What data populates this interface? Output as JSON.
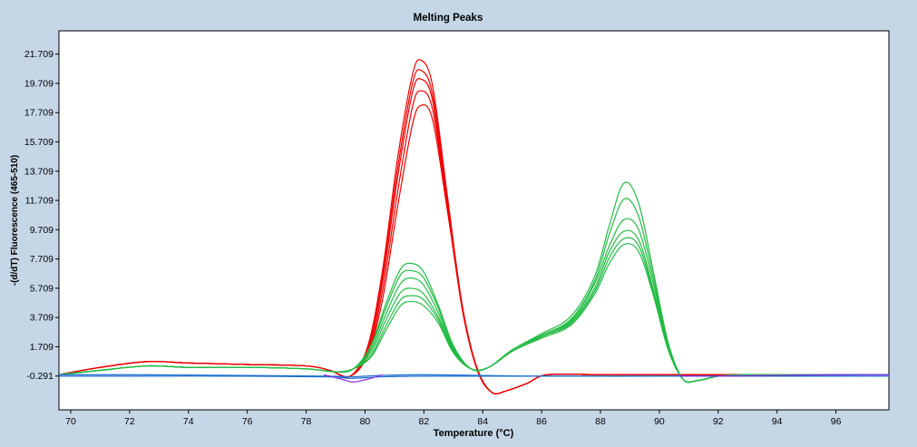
{
  "chart_data": {
    "type": "line",
    "title": "Melting Peaks",
    "xlabel": "Temperature (°C)",
    "ylabel": "-(d/dT) Fluorescence (465-510)",
    "xlim": [
      69.6,
      97.8
    ],
    "ylim": [
      -2.6,
      23.3
    ],
    "x_ticks": [
      70,
      72,
      74,
      76,
      78,
      80,
      82,
      84,
      86,
      88,
      90,
      92,
      94,
      96
    ],
    "y_ticks": [
      -0.291,
      1.709,
      3.709,
      5.709,
      7.709,
      9.709,
      11.709,
      13.709,
      15.709,
      17.709,
      19.709,
      21.709
    ],
    "grid": false,
    "legend": "none",
    "colors": {
      "red": "#ee0000",
      "green": "#22bb44",
      "blue": "#1e6fd0",
      "purple": "#8a2be2"
    },
    "series": [
      {
        "color": "red",
        "x": [
          69.6,
          71,
          72.6,
          74,
          76,
          78,
          78.8,
          79.5,
          80.1,
          80.6,
          81.1,
          81.6,
          81.9,
          82.3,
          82.8,
          83.3,
          83.8,
          84.3,
          84.8,
          85.5,
          86.2,
          88,
          90,
          92,
          94,
          96,
          97.8
        ],
        "y": [
          -0.2,
          0.3,
          0.7,
          0.6,
          0.5,
          0.4,
          0.1,
          -0.3,
          1.8,
          7.0,
          14.5,
          20.2,
          21.3,
          19.5,
          12.0,
          4.6,
          0.2,
          -1.4,
          -1.3,
          -0.8,
          -0.2,
          -0.2,
          -0.2,
          -0.2,
          -0.2,
          -0.2,
          -0.2
        ]
      },
      {
        "color": "red",
        "x": [
          69.6,
          71,
          72.6,
          74,
          76,
          78,
          78.8,
          79.5,
          80.1,
          80.6,
          81.1,
          81.6,
          81.9,
          82.3,
          82.8,
          83.3,
          83.8,
          84.3,
          84.8,
          85.5,
          86.2,
          88,
          90,
          92,
          94,
          96,
          97.8
        ],
        "y": [
          -0.2,
          0.3,
          0.7,
          0.6,
          0.5,
          0.4,
          0.1,
          -0.3,
          1.6,
          6.6,
          13.8,
          19.6,
          20.6,
          18.9,
          11.6,
          4.4,
          0.2,
          -1.4,
          -1.3,
          -0.8,
          -0.2,
          -0.2,
          -0.2,
          -0.2,
          -0.2,
          -0.2,
          -0.2
        ]
      },
      {
        "color": "red",
        "x": [
          69.6,
          71,
          72.6,
          74,
          76,
          78,
          78.8,
          79.5,
          80.1,
          80.6,
          81.1,
          81.6,
          81.9,
          82.3,
          82.8,
          83.3,
          83.8,
          84.3,
          84.8,
          85.5,
          86.2,
          88,
          90,
          92,
          94,
          96,
          97.8
        ],
        "y": [
          -0.2,
          0.3,
          0.7,
          0.6,
          0.5,
          0.4,
          0.1,
          -0.3,
          1.5,
          6.2,
          13.2,
          19.0,
          20.0,
          18.5,
          11.4,
          4.3,
          0.2,
          -1.4,
          -1.3,
          -0.8,
          -0.2,
          -0.2,
          -0.2,
          -0.2,
          -0.2,
          -0.2,
          -0.2
        ]
      },
      {
        "color": "red",
        "x": [
          69.6,
          71,
          72.6,
          74,
          76,
          78,
          78.8,
          79.5,
          80.1,
          80.6,
          81.1,
          81.6,
          81.9,
          82.3,
          82.8,
          83.3,
          83.8,
          84.3,
          84.8,
          85.5,
          86.2,
          88,
          90,
          92,
          94,
          96,
          97.8
        ],
        "y": [
          -0.2,
          0.3,
          0.7,
          0.6,
          0.5,
          0.4,
          0.1,
          -0.3,
          1.3,
          5.6,
          12.2,
          18.0,
          19.2,
          17.9,
          11.2,
          4.4,
          0.3,
          -1.4,
          -1.3,
          -0.8,
          -0.2,
          -0.2,
          -0.2,
          -0.2,
          -0.2,
          -0.2,
          -0.2
        ]
      },
      {
        "color": "red",
        "x": [
          69.6,
          71,
          72.6,
          74,
          76,
          78,
          78.8,
          79.5,
          80.1,
          80.6,
          81.1,
          81.6,
          81.9,
          82.3,
          82.8,
          83.3,
          83.8,
          84.3,
          84.8,
          85.5,
          86.2,
          88,
          90,
          92,
          94,
          96,
          97.8
        ],
        "y": [
          -0.2,
          0.3,
          0.7,
          0.6,
          0.5,
          0.4,
          0.1,
          -0.3,
          1.2,
          5.0,
          11.2,
          16.8,
          18.2,
          17.2,
          11.0,
          4.5,
          0.3,
          -1.4,
          -1.3,
          -0.8,
          -0.2,
          -0.2,
          -0.2,
          -0.2,
          -0.2,
          -0.2,
          -0.2
        ]
      },
      {
        "color": "green",
        "x": [
          69.6,
          71,
          72.6,
          74,
          76,
          78,
          79,
          79.6,
          80.2,
          80.7,
          81.2,
          81.6,
          82,
          82.5,
          83,
          83.6,
          84.2,
          85,
          86,
          87,
          87.8,
          88.3,
          88.8,
          89.3,
          89.8,
          90.3,
          90.8,
          91.3,
          92,
          93,
          94,
          96,
          97.8
        ],
        "y": [
          -0.2,
          0.1,
          0.4,
          0.3,
          0.3,
          0.2,
          0.0,
          0.2,
          1.8,
          4.6,
          7.0,
          7.4,
          6.8,
          4.5,
          1.8,
          0.2,
          0.3,
          1.5,
          2.6,
          3.8,
          6.5,
          10.0,
          12.9,
          11.5,
          6.8,
          2.0,
          -0.5,
          -0.6,
          -0.3,
          -0.2,
          -0.2,
          -0.2,
          -0.2
        ]
      },
      {
        "color": "green",
        "x": [
          69.6,
          71,
          72.6,
          74,
          76,
          78,
          79,
          79.6,
          80.2,
          80.7,
          81.2,
          81.6,
          82,
          82.5,
          83,
          83.6,
          84.2,
          85,
          86,
          87,
          87.8,
          88.3,
          88.8,
          89.3,
          89.8,
          90.3,
          90.8,
          91.3,
          92,
          93,
          94,
          96,
          97.8
        ],
        "y": [
          -0.2,
          0.1,
          0.4,
          0.3,
          0.3,
          0.2,
          0.0,
          0.2,
          1.7,
          4.3,
          6.6,
          6.9,
          6.4,
          4.3,
          1.7,
          0.2,
          0.3,
          1.5,
          2.5,
          3.6,
          6.2,
          9.4,
          11.8,
          10.6,
          6.4,
          1.9,
          -0.5,
          -0.6,
          -0.3,
          -0.2,
          -0.2,
          -0.2,
          -0.2
        ]
      },
      {
        "color": "green",
        "x": [
          69.6,
          71,
          72.6,
          74,
          76,
          78,
          79,
          79.6,
          80.2,
          80.7,
          81.2,
          81.6,
          82,
          82.5,
          83,
          83.6,
          84.2,
          85,
          86,
          87,
          87.8,
          88.3,
          88.8,
          89.3,
          89.8,
          90.3,
          90.8,
          91.3,
          92,
          93,
          94,
          96,
          97.8
        ],
        "y": [
          -0.2,
          0.1,
          0.4,
          0.3,
          0.3,
          0.2,
          0.0,
          0.2,
          1.5,
          3.9,
          6.0,
          6.4,
          5.9,
          4.0,
          1.6,
          0.2,
          0.3,
          1.5,
          2.5,
          3.5,
          6.0,
          8.6,
          10.4,
          9.7,
          6.0,
          1.8,
          -0.5,
          -0.6,
          -0.3,
          -0.2,
          -0.2,
          -0.2,
          -0.2
        ]
      },
      {
        "color": "green",
        "x": [
          69.6,
          71,
          72.6,
          74,
          76,
          78,
          79,
          79.6,
          80.2,
          80.7,
          81.2,
          81.6,
          82,
          82.5,
          83,
          83.6,
          84.2,
          85,
          86,
          87,
          87.8,
          88.3,
          88.8,
          89.3,
          89.8,
          90.3,
          90.8,
          91.3,
          92,
          93,
          94,
          96,
          97.8
        ],
        "y": [
          -0.2,
          0.1,
          0.4,
          0.3,
          0.3,
          0.2,
          0.0,
          0.2,
          1.3,
          3.5,
          5.4,
          5.7,
          5.3,
          3.7,
          1.5,
          0.2,
          0.3,
          1.4,
          2.4,
          3.4,
          5.7,
          8.2,
          9.6,
          9.0,
          5.6,
          1.7,
          -0.5,
          -0.6,
          -0.3,
          -0.2,
          -0.2,
          -0.2,
          -0.2
        ]
      },
      {
        "color": "green",
        "x": [
          69.6,
          71,
          72.6,
          74,
          76,
          78,
          79,
          79.6,
          80.2,
          80.7,
          81.2,
          81.6,
          82,
          82.5,
          83,
          83.6,
          84.2,
          85,
          86,
          87,
          87.8,
          88.3,
          88.8,
          89.3,
          89.8,
          90.3,
          90.8,
          91.3,
          92,
          93,
          94,
          96,
          97.8
        ],
        "y": [
          -0.2,
          0.1,
          0.4,
          0.3,
          0.3,
          0.2,
          0.0,
          0.2,
          1.1,
          3.1,
          4.9,
          5.2,
          4.9,
          3.5,
          1.4,
          0.2,
          0.3,
          1.4,
          2.4,
          3.3,
          5.5,
          7.8,
          9.1,
          8.6,
          5.4,
          1.6,
          -0.5,
          -0.6,
          -0.3,
          -0.2,
          -0.2,
          -0.2,
          -0.2
        ]
      },
      {
        "color": "green",
        "x": [
          69.6,
          71,
          72.6,
          74,
          76,
          78,
          79,
          79.6,
          80.2,
          80.7,
          81.2,
          81.6,
          82,
          82.5,
          83,
          83.6,
          84.2,
          85,
          86,
          87,
          87.8,
          88.3,
          88.8,
          89.3,
          89.8,
          90.3,
          90.8,
          91.3,
          92,
          93,
          94,
          96,
          97.8
        ],
        "y": [
          -0.2,
          0.1,
          0.4,
          0.3,
          0.3,
          0.2,
          0.0,
          0.2,
          1.0,
          2.8,
          4.5,
          4.8,
          4.5,
          3.3,
          1.3,
          0.2,
          0.3,
          1.4,
          2.3,
          3.2,
          5.3,
          7.4,
          8.7,
          8.2,
          5.2,
          1.5,
          -0.5,
          -0.6,
          -0.3,
          -0.2,
          -0.2,
          -0.2,
          -0.2
        ]
      },
      {
        "color": "blue",
        "x": [
          69.6,
          72,
          76,
          78.8,
          79.5,
          80.5,
          82,
          84,
          86,
          90,
          94,
          97.8
        ],
        "y": [
          -0.3,
          -0.3,
          -0.3,
          -0.35,
          -0.45,
          -0.35,
          -0.3,
          -0.3,
          -0.3,
          -0.3,
          -0.3,
          -0.3
        ]
      },
      {
        "color": "blue",
        "x": [
          69.6,
          72,
          76,
          78.8,
          79.5,
          80.5,
          82,
          84,
          86,
          90,
          94,
          97.8
        ],
        "y": [
          -0.2,
          -0.2,
          -0.25,
          -0.3,
          -0.35,
          -0.25,
          -0.2,
          -0.25,
          -0.3,
          -0.3,
          -0.25,
          -0.2
        ]
      },
      {
        "color": "purple",
        "x": [
          78.6,
          79.2,
          79.6,
          80.1,
          80.6
        ],
        "y": [
          -0.2,
          -0.5,
          -0.7,
          -0.5,
          -0.2
        ]
      },
      {
        "color": "purple",
        "x": [
          90.6,
          91.2,
          92,
          94,
          96,
          97.8
        ],
        "y": [
          -0.25,
          -0.3,
          -0.3,
          -0.25,
          -0.2,
          -0.2
        ]
      }
    ]
  }
}
